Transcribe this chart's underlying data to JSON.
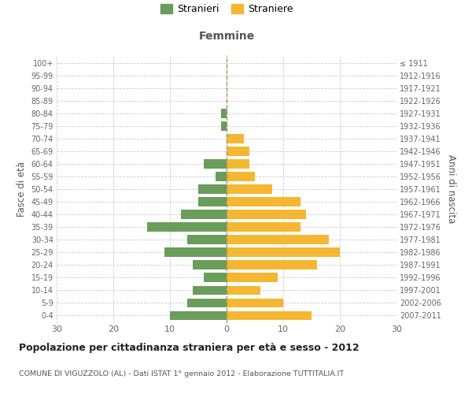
{
  "age_groups": [
    "0-4",
    "5-9",
    "10-14",
    "15-19",
    "20-24",
    "25-29",
    "30-34",
    "35-39",
    "40-44",
    "45-49",
    "50-54",
    "55-59",
    "60-64",
    "65-69",
    "70-74",
    "75-79",
    "80-84",
    "85-89",
    "90-94",
    "95-99",
    "100+"
  ],
  "birth_years": [
    "2007-2011",
    "2002-2006",
    "1997-2001",
    "1992-1996",
    "1987-1991",
    "1982-1986",
    "1977-1981",
    "1972-1976",
    "1967-1971",
    "1962-1966",
    "1957-1961",
    "1952-1956",
    "1947-1951",
    "1942-1946",
    "1937-1941",
    "1932-1936",
    "1927-1931",
    "1922-1926",
    "1917-1921",
    "1912-1916",
    "≤ 1911"
  ],
  "males": [
    10,
    7,
    6,
    4,
    6,
    11,
    7,
    14,
    8,
    5,
    5,
    2,
    4,
    0,
    0,
    1,
    1,
    0,
    0,
    0,
    0
  ],
  "females": [
    15,
    10,
    6,
    9,
    16,
    20,
    18,
    13,
    14,
    13,
    8,
    5,
    4,
    4,
    3,
    0,
    0,
    0,
    0,
    0,
    0
  ],
  "male_color": "#6a9d5a",
  "female_color": "#f5b731",
  "background_color": "#ffffff",
  "grid_color": "#cccccc",
  "title": "Popolazione per cittadinanza straniera per età e sesso - 2012",
  "subtitle": "COMUNE DI VIGUZZOLO (AL) - Dati ISTAT 1° gennaio 2012 - Elaborazione TUTTITALIA.IT",
  "xlabel_right": "Femmine",
  "ylabel_left": "Fasce di età",
  "ylabel_right": "Anni di nascita",
  "legend_male": "Stranieri",
  "legend_female": "Straniere",
  "xlim": 30,
  "bar_height": 0.72
}
